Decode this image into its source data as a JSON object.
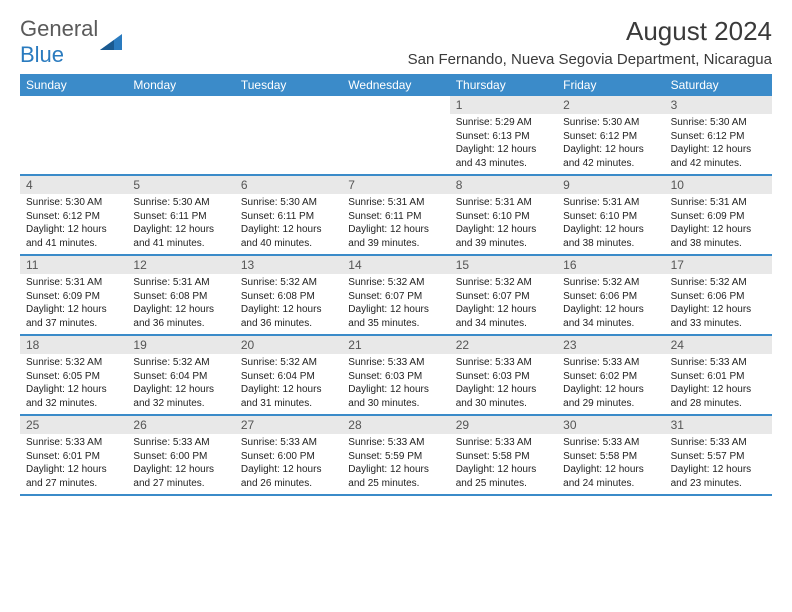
{
  "logo": {
    "text1": "General",
    "text2": "Blue"
  },
  "title": "August 2024",
  "location": "San Fernando, Nueva Segovia Department, Nicaragua",
  "colors": {
    "header_bg": "#3b8bc9",
    "header_text": "#ffffff",
    "daynum_bg": "#e8e8e8",
    "daynum_text": "#555555",
    "body_text": "#222222",
    "logo_gray": "#5a5a5a",
    "logo_blue": "#2a7bbf"
  },
  "day_names": [
    "Sunday",
    "Monday",
    "Tuesday",
    "Wednesday",
    "Thursday",
    "Friday",
    "Saturday"
  ],
  "weeks": [
    [
      null,
      null,
      null,
      null,
      {
        "d": "1",
        "sr": "5:29 AM",
        "ss": "6:13 PM",
        "dl": "12 hours and 43 minutes."
      },
      {
        "d": "2",
        "sr": "5:30 AM",
        "ss": "6:12 PM",
        "dl": "12 hours and 42 minutes."
      },
      {
        "d": "3",
        "sr": "5:30 AM",
        "ss": "6:12 PM",
        "dl": "12 hours and 42 minutes."
      }
    ],
    [
      {
        "d": "4",
        "sr": "5:30 AM",
        "ss": "6:12 PM",
        "dl": "12 hours and 41 minutes."
      },
      {
        "d": "5",
        "sr": "5:30 AM",
        "ss": "6:11 PM",
        "dl": "12 hours and 41 minutes."
      },
      {
        "d": "6",
        "sr": "5:30 AM",
        "ss": "6:11 PM",
        "dl": "12 hours and 40 minutes."
      },
      {
        "d": "7",
        "sr": "5:31 AM",
        "ss": "6:11 PM",
        "dl": "12 hours and 39 minutes."
      },
      {
        "d": "8",
        "sr": "5:31 AM",
        "ss": "6:10 PM",
        "dl": "12 hours and 39 minutes."
      },
      {
        "d": "9",
        "sr": "5:31 AM",
        "ss": "6:10 PM",
        "dl": "12 hours and 38 minutes."
      },
      {
        "d": "10",
        "sr": "5:31 AM",
        "ss": "6:09 PM",
        "dl": "12 hours and 38 minutes."
      }
    ],
    [
      {
        "d": "11",
        "sr": "5:31 AM",
        "ss": "6:09 PM",
        "dl": "12 hours and 37 minutes."
      },
      {
        "d": "12",
        "sr": "5:31 AM",
        "ss": "6:08 PM",
        "dl": "12 hours and 36 minutes."
      },
      {
        "d": "13",
        "sr": "5:32 AM",
        "ss": "6:08 PM",
        "dl": "12 hours and 36 minutes."
      },
      {
        "d": "14",
        "sr": "5:32 AM",
        "ss": "6:07 PM",
        "dl": "12 hours and 35 minutes."
      },
      {
        "d": "15",
        "sr": "5:32 AM",
        "ss": "6:07 PM",
        "dl": "12 hours and 34 minutes."
      },
      {
        "d": "16",
        "sr": "5:32 AM",
        "ss": "6:06 PM",
        "dl": "12 hours and 34 minutes."
      },
      {
        "d": "17",
        "sr": "5:32 AM",
        "ss": "6:06 PM",
        "dl": "12 hours and 33 minutes."
      }
    ],
    [
      {
        "d": "18",
        "sr": "5:32 AM",
        "ss": "6:05 PM",
        "dl": "12 hours and 32 minutes."
      },
      {
        "d": "19",
        "sr": "5:32 AM",
        "ss": "6:04 PM",
        "dl": "12 hours and 32 minutes."
      },
      {
        "d": "20",
        "sr": "5:32 AM",
        "ss": "6:04 PM",
        "dl": "12 hours and 31 minutes."
      },
      {
        "d": "21",
        "sr": "5:33 AM",
        "ss": "6:03 PM",
        "dl": "12 hours and 30 minutes."
      },
      {
        "d": "22",
        "sr": "5:33 AM",
        "ss": "6:03 PM",
        "dl": "12 hours and 30 minutes."
      },
      {
        "d": "23",
        "sr": "5:33 AM",
        "ss": "6:02 PM",
        "dl": "12 hours and 29 minutes."
      },
      {
        "d": "24",
        "sr": "5:33 AM",
        "ss": "6:01 PM",
        "dl": "12 hours and 28 minutes."
      }
    ],
    [
      {
        "d": "25",
        "sr": "5:33 AM",
        "ss": "6:01 PM",
        "dl": "12 hours and 27 minutes."
      },
      {
        "d": "26",
        "sr": "5:33 AM",
        "ss": "6:00 PM",
        "dl": "12 hours and 27 minutes."
      },
      {
        "d": "27",
        "sr": "5:33 AM",
        "ss": "6:00 PM",
        "dl": "12 hours and 26 minutes."
      },
      {
        "d": "28",
        "sr": "5:33 AM",
        "ss": "5:59 PM",
        "dl": "12 hours and 25 minutes."
      },
      {
        "d": "29",
        "sr": "5:33 AM",
        "ss": "5:58 PM",
        "dl": "12 hours and 25 minutes."
      },
      {
        "d": "30",
        "sr": "5:33 AM",
        "ss": "5:58 PM",
        "dl": "12 hours and 24 minutes."
      },
      {
        "d": "31",
        "sr": "5:33 AM",
        "ss": "5:57 PM",
        "dl": "12 hours and 23 minutes."
      }
    ]
  ],
  "labels": {
    "sunrise": "Sunrise: ",
    "sunset": "Sunset: ",
    "daylight": "Daylight: "
  }
}
